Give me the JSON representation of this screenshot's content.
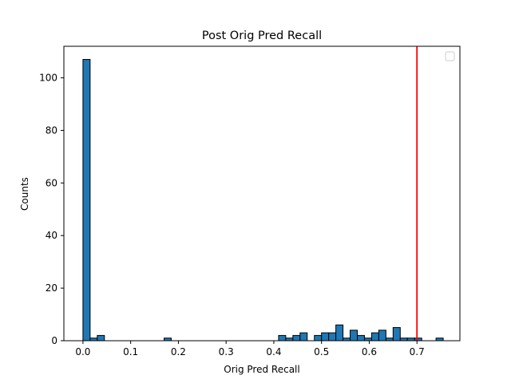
{
  "chart_data": {
    "type": "bar",
    "title": "Post Orig Pred Recall",
    "xlabel": "Orig Pred Recall",
    "ylabel": "Counts",
    "xlim": [
      -0.04,
      0.79
    ],
    "ylim": [
      0,
      112
    ],
    "xticks": [
      "0.0",
      "0.1",
      "0.2",
      "0.3",
      "0.4",
      "0.5",
      "0.6",
      "0.7"
    ],
    "yticks": [
      "0",
      "20",
      "40",
      "60",
      "80",
      "100"
    ],
    "bin_width": 0.015,
    "bins": [
      {
        "x": 0.0,
        "count": 107
      },
      {
        "x": 0.015,
        "count": 1
      },
      {
        "x": 0.03,
        "count": 2
      },
      {
        "x": 0.17,
        "count": 1
      },
      {
        "x": 0.41,
        "count": 2
      },
      {
        "x": 0.425,
        "count": 1
      },
      {
        "x": 0.44,
        "count": 2
      },
      {
        "x": 0.455,
        "count": 3
      },
      {
        "x": 0.485,
        "count": 2
      },
      {
        "x": 0.5,
        "count": 3
      },
      {
        "x": 0.515,
        "count": 3
      },
      {
        "x": 0.53,
        "count": 6
      },
      {
        "x": 0.545,
        "count": 1
      },
      {
        "x": 0.56,
        "count": 4
      },
      {
        "x": 0.575,
        "count": 2
      },
      {
        "x": 0.59,
        "count": 1
      },
      {
        "x": 0.605,
        "count": 3
      },
      {
        "x": 0.62,
        "count": 4
      },
      {
        "x": 0.635,
        "count": 1
      },
      {
        "x": 0.65,
        "count": 5
      },
      {
        "x": 0.665,
        "count": 1
      },
      {
        "x": 0.68,
        "count": 1
      },
      {
        "x": 0.695,
        "count": 1
      },
      {
        "x": 0.74,
        "count": 1
      }
    ],
    "threshold_line": {
      "x": 0.7,
      "color": "#ff0000"
    },
    "bar_color": "#1f77b4",
    "bar_edge_color": "#000000",
    "legend": {
      "placement": "top-right",
      "entries": []
    },
    "grid": false
  }
}
